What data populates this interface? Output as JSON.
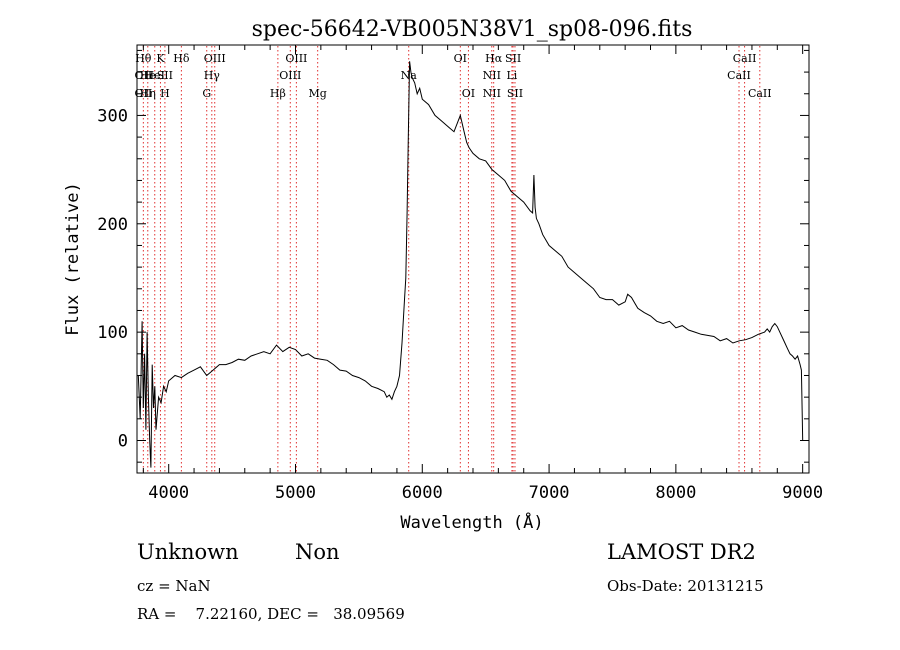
{
  "chart_data": {
    "type": "line",
    "title": "spec-56642-VB005N38V1_sp08-096.fits",
    "xlabel": "Wavelength (Å)",
    "ylabel": "Flux (relative)",
    "xlim": [
      3750,
      9050
    ],
    "ylim": [
      -30,
      365
    ],
    "x_ticks": [
      4000,
      5000,
      6000,
      7000,
      8000,
      9000
    ],
    "x_tick_labels": [
      "4000",
      "5000",
      "6000",
      "7000",
      "8000",
      "9000"
    ],
    "y_ticks": [
      0,
      100,
      200,
      300
    ],
    "y_tick_labels": [
      "0",
      "100",
      "200",
      "300"
    ],
    "grid": false,
    "series": [
      {
        "color": "#000000",
        "x": [
          3760,
          3775,
          3790,
          3800,
          3810,
          3820,
          3830,
          3840,
          3850,
          3860,
          3870,
          3880,
          3890,
          3900,
          3920,
          3940,
          3960,
          3980,
          4000,
          4050,
          4100,
          4150,
          4200,
          4250,
          4300,
          4350,
          4400,
          4450,
          4500,
          4550,
          4600,
          4650,
          4700,
          4750,
          4800,
          4850,
          4900,
          4950,
          5000,
          5050,
          5100,
          5150,
          5200,
          5250,
          5300,
          5350,
          5400,
          5450,
          5500,
          5550,
          5600,
          5650,
          5700,
          5720,
          5740,
          5760,
          5780,
          5800,
          5820,
          5840,
          5860,
          5870,
          5880,
          5890,
          5900,
          5910,
          5920,
          5940,
          5960,
          5980,
          6000,
          6050,
          6100,
          6150,
          6200,
          6250,
          6300,
          6330,
          6350,
          6370,
          6400,
          6450,
          6500,
          6550,
          6600,
          6650,
          6700,
          6750,
          6800,
          6850,
          6870,
          6880,
          6890,
          6900,
          6920,
          6950,
          7000,
          7050,
          7100,
          7150,
          7200,
          7250,
          7300,
          7350,
          7400,
          7450,
          7500,
          7550,
          7600,
          7620,
          7650,
          7700,
          7750,
          7800,
          7850,
          7900,
          7950,
          8000,
          8050,
          8100,
          8150,
          8200,
          8250,
          8300,
          8350,
          8400,
          8450,
          8500,
          8550,
          8600,
          8650,
          8700,
          8720,
          8740,
          8760,
          8780,
          8800,
          8820,
          8840,
          8860,
          8880,
          8900,
          8920,
          8940,
          8960,
          8980,
          8990,
          9000
        ],
        "y": [
          60,
          20,
          110,
          30,
          80,
          10,
          100,
          40,
          0,
          -25,
          70,
          30,
          50,
          10,
          40,
          35,
          50,
          45,
          55,
          60,
          58,
          62,
          65,
          68,
          60,
          65,
          70,
          70,
          72,
          75,
          74,
          78,
          80,
          82,
          80,
          88,
          82,
          86,
          84,
          78,
          80,
          76,
          75,
          74,
          70,
          65,
          64,
          60,
          58,
          55,
          50,
          48,
          45,
          40,
          42,
          38,
          45,
          50,
          60,
          90,
          130,
          150,
          210,
          280,
          350,
          340,
          335,
          330,
          320,
          325,
          315,
          310,
          300,
          295,
          290,
          285,
          300,
          285,
          275,
          270,
          265,
          260,
          258,
          250,
          245,
          240,
          230,
          225,
          220,
          212,
          210,
          245,
          215,
          205,
          200,
          190,
          180,
          175,
          170,
          160,
          155,
          150,
          145,
          140,
          132,
          130,
          130,
          125,
          128,
          135,
          132,
          122,
          118,
          115,
          110,
          108,
          110,
          104,
          106,
          102,
          100,
          98,
          97,
          96,
          92,
          94,
          90,
          92,
          93,
          95,
          98,
          100,
          103,
          100,
          105,
          108,
          105,
          100,
          95,
          90,
          85,
          80,
          78,
          75,
          78,
          70,
          65,
          0
        ]
      }
    ],
    "line_labels": [
      {
        "x": 3800,
        "color": "#e03030",
        "labels": [
          {
            "text": "Hθ",
            "row": 0
          },
          {
            "text": "OII",
            "row": 1
          },
          {
            "text": "OII",
            "row": 2
          }
        ]
      },
      {
        "x": 3835,
        "color": "#e03030",
        "labels": [
          {
            "text": "He",
            "row": 1
          },
          {
            "text": "Hη",
            "row": 2
          }
        ]
      },
      {
        "x": 3890,
        "color": "#e03030",
        "labels": [
          {
            "text": "HeI",
            "row": 1
          }
        ]
      },
      {
        "x": 3935,
        "color": "#e03030",
        "labels": [
          {
            "text": "K",
            "row": 0
          }
        ]
      },
      {
        "x": 3970,
        "color": "#e03030",
        "labels": [
          {
            "text": "SII",
            "row": 1
          },
          {
            "text": "H",
            "row": 2
          }
        ]
      },
      {
        "x": 4100,
        "color": "#e03030",
        "labels": [
          {
            "text": "Hδ",
            "row": 0
          }
        ]
      },
      {
        "x": 4300,
        "color": "#e03030",
        "labels": [
          {
            "text": "G",
            "row": 2
          }
        ]
      },
      {
        "x": 4340,
        "color": "#e03030",
        "labels": [
          {
            "text": "Hγ",
            "row": 1
          }
        ]
      },
      {
        "x": 4363,
        "color": "#e03030",
        "labels": [
          {
            "text": "OIII",
            "row": 0
          }
        ]
      },
      {
        "x": 4861,
        "color": "#e03030",
        "labels": [
          {
            "text": "Hβ",
            "row": 2
          }
        ]
      },
      {
        "x": 4959,
        "color": "#e03030",
        "labels": [
          {
            "text": "OIII",
            "row": 1
          }
        ]
      },
      {
        "x": 5007,
        "color": "#e03030",
        "labels": [
          {
            "text": "OIII",
            "row": 0
          }
        ]
      },
      {
        "x": 5175,
        "color": "#e03030",
        "labels": [
          {
            "text": "Mg",
            "row": 2
          }
        ]
      },
      {
        "x": 5893,
        "color": "#e03030",
        "labels": [
          {
            "text": "Na",
            "row": 1
          }
        ]
      },
      {
        "x": 6300,
        "color": "#e03030",
        "labels": [
          {
            "text": "OI",
            "row": 0
          }
        ]
      },
      {
        "x": 6364,
        "color": "#e03030",
        "labels": [
          {
            "text": "OI",
            "row": 2
          }
        ]
      },
      {
        "x": 6548,
        "color": "#e03030",
        "labels": [
          {
            "text": "NII",
            "row": 1
          },
          {
            "text": "NII",
            "row": 2
          }
        ]
      },
      {
        "x": 6563,
        "color": "#e03030",
        "labels": [
          {
            "text": "Hα",
            "row": 0
          }
        ]
      },
      {
        "x": 6707,
        "color": "#e03030",
        "labels": [
          {
            "text": "Li",
            "row": 1
          }
        ]
      },
      {
        "x": 6716,
        "color": "#e03030",
        "labels": [
          {
            "text": "SII",
            "row": 0
          }
        ]
      },
      {
        "x": 6731,
        "color": "#e03030",
        "labels": [
          {
            "text": "SII",
            "row": 2
          }
        ]
      },
      {
        "x": 8498,
        "color": "#e03030",
        "labels": [
          {
            "text": "CaII",
            "row": 1
          }
        ]
      },
      {
        "x": 8542,
        "color": "#e03030",
        "labels": [
          {
            "text": "CaII",
            "row": 0
          }
        ]
      },
      {
        "x": 8662,
        "color": "#e03030",
        "labels": [
          {
            "text": "CaII",
            "row": 2
          }
        ]
      }
    ]
  },
  "footer": {
    "class": "Unknown",
    "subclass": "Non",
    "survey": "LAMOST DR2",
    "cz": "cz = NaN",
    "obs_date": "Obs-Date: 20131215",
    "radec": "RA =    7.22160, DEC =   38.09569"
  }
}
